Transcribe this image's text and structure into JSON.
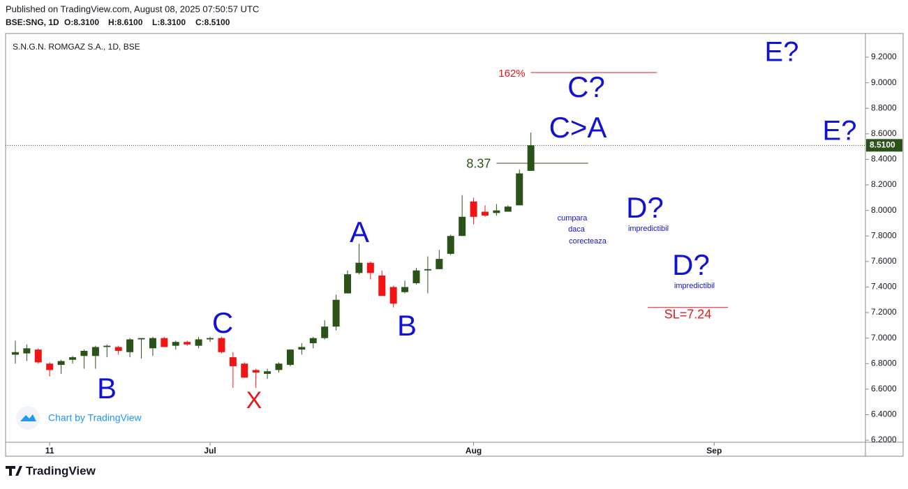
{
  "chart_data": {
    "type": "candlestick",
    "published": "Published on TradingView.com, August 08, 2025 07:50:57 UTC",
    "symbol": "BSE:SNG, 1D",
    "ohlc_labels": [
      "O:8.3100",
      "H:8.6100",
      "L:8.3100",
      "C:8.5100"
    ],
    "title": "S.N.G.N. ROMGAZ S.A., 1D, BSE",
    "watermark": "Chart by TradingView",
    "logo": "TradingView",
    "up_color": "#2b5219",
    "down_color": "#f01414",
    "open": [
      6.87,
      6.88,
      6.91,
      6.8,
      6.79,
      6.83,
      6.86,
      6.86,
      6.93,
      6.93,
      6.89,
      6.99,
      6.92,
      7.0,
      6.94,
      6.97,
      6.94,
      6.99,
      7.0,
      6.85,
      6.8,
      6.75,
      6.72,
      6.75,
      6.79,
      6.91,
      6.96,
      7.0,
      7.09,
      7.35,
      7.51,
      7.59,
      7.49,
      7.4,
      7.36,
      7.43,
      7.53,
      7.54,
      7.66,
      7.8,
      8.07,
      7.99,
      7.98,
      7.99,
      8.04,
      8.31
    ],
    "high": [
      6.98,
      6.95,
      6.92,
      6.81,
      6.83,
      6.86,
      6.91,
      6.94,
      6.95,
      6.94,
      7.0,
      7.0,
      7.01,
      7.01,
      6.98,
      6.98,
      7.01,
      7.01,
      7.01,
      6.89,
      6.81,
      6.76,
      6.76,
      6.81,
      6.91,
      6.96,
      7.01,
      7.14,
      7.34,
      7.53,
      7.74,
      7.6,
      7.53,
      7.41,
      7.45,
      7.55,
      7.64,
      7.69,
      7.81,
      8.12,
      8.1,
      8.04,
      8.05,
      8.04,
      8.32,
      8.61
    ],
    "low": [
      6.8,
      6.82,
      6.8,
      6.7,
      6.72,
      6.8,
      6.76,
      6.76,
      6.85,
      6.87,
      6.85,
      6.84,
      6.86,
      6.93,
      6.91,
      6.94,
      6.92,
      6.97,
      6.88,
      6.61,
      6.69,
      6.61,
      6.68,
      6.73,
      6.78,
      6.87,
      6.92,
      6.99,
      7.06,
      7.35,
      7.5,
      7.46,
      7.33,
      7.24,
      7.35,
      7.42,
      7.35,
      7.54,
      7.65,
      7.8,
      7.89,
      7.95,
      7.96,
      7.99,
      8.04,
      8.31
    ],
    "close": [
      6.89,
      6.92,
      6.81,
      6.75,
      6.82,
      6.85,
      6.9,
      6.93,
      6.94,
      6.9,
      6.99,
      7.0,
      7.0,
      6.93,
      6.97,
      6.95,
      6.99,
      7.0,
      6.89,
      6.78,
      6.69,
      6.73,
      6.74,
      6.8,
      6.91,
      6.93,
      7.0,
      7.09,
      7.3,
      7.5,
      7.59,
      7.51,
      7.33,
      7.27,
      7.4,
      7.53,
      7.54,
      7.62,
      7.8,
      7.95,
      7.95,
      7.96,
      8.0,
      8.03,
      8.29,
      8.51
    ],
    "xlim": [
      -0.85,
      74.2
    ],
    "xticks": [
      {
        "value": 3,
        "label": "11"
      },
      {
        "value": 17,
        "label": "Jul"
      },
      {
        "value": 40,
        "label": "Aug"
      },
      {
        "value": 61,
        "label": "Sep"
      }
    ],
    "ylim": [
      6.184,
      9.386
    ],
    "yticks": [
      {
        "value": 6.2,
        "label": "6.2000"
      },
      {
        "value": 6.4,
        "label": "6.4000"
      },
      {
        "value": 6.6,
        "label": "6.6000"
      },
      {
        "value": 6.8,
        "label": "6.8000"
      },
      {
        "value": 7.0,
        "label": "7.0000"
      },
      {
        "value": 7.2,
        "label": "7.2000"
      },
      {
        "value": 7.4,
        "label": "7.4000"
      },
      {
        "value": 7.6,
        "label": "7.6000"
      },
      {
        "value": 7.8,
        "label": "7.8000"
      },
      {
        "value": 8.0,
        "label": "8.0000"
      },
      {
        "value": 8.2,
        "label": "8.2000"
      },
      {
        "value": 8.4,
        "label": "8.4000"
      },
      {
        "value": 8.6,
        "label": "8.6000"
      },
      {
        "value": 8.8,
        "label": "8.8000"
      },
      {
        "value": 9.0,
        "label": "9.0000"
      },
      {
        "value": 9.2,
        "label": "9.2000"
      }
    ],
    "last_price": {
      "value": 8.51,
      "label": "8.5100"
    },
    "levels": [
      {
        "label": "162%",
        "value": 9.08,
        "color": "#e8161d",
        "from": 45,
        "to": 56
      },
      {
        "label": "8.37",
        "value": 8.37,
        "color": "#2b5219",
        "from": 42,
        "to": 50
      },
      {
        "label": "SL=7.24",
        "value": 7.24,
        "color": "#e8161d",
        "from": 55.2,
        "to": 62.2
      }
    ],
    "annotations": [
      "E?",
      "C?",
      "C>A",
      "E?",
      "cumpara",
      "daca",
      "corecteaza",
      "D?",
      "impredictibil",
      "D?",
      "impredictibil",
      "A",
      "B",
      "C",
      "B",
      "X"
    ]
  }
}
